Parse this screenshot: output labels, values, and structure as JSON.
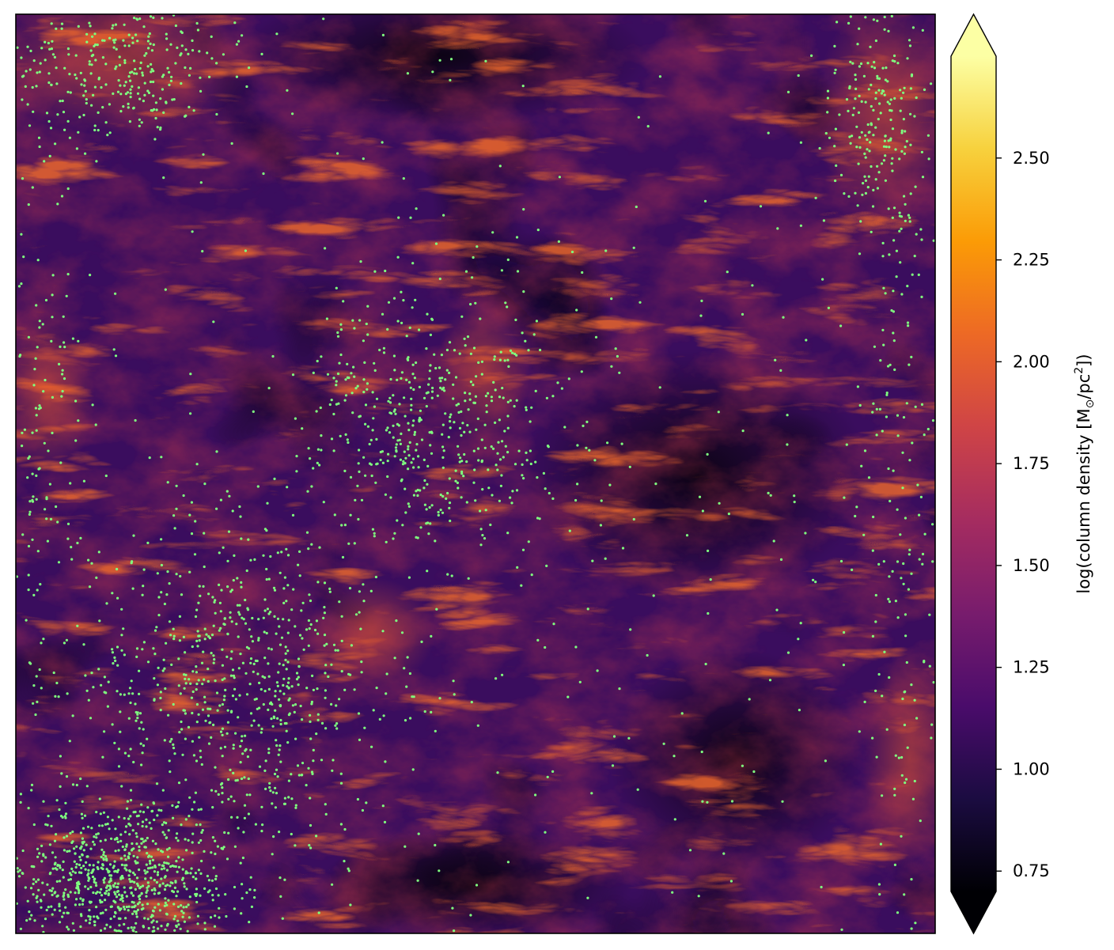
{
  "chart_data": {
    "type": "heatmap",
    "title": "",
    "xlabel": "",
    "ylabel": "",
    "colormap": "inferno",
    "overlay": {
      "type": "scatter",
      "marker_color": "#7fff7f",
      "clusters": [
        {
          "region": "bottom-left",
          "count": 900
        },
        {
          "region": "lower-left-center",
          "count": 700
        },
        {
          "region": "center",
          "count": 450
        },
        {
          "region": "top-left",
          "count": 300
        },
        {
          "region": "top-right",
          "count": 220
        },
        {
          "region": "right-edge",
          "count": 180
        },
        {
          "region": "left-edge",
          "count": 160
        },
        {
          "region": "scattered",
          "count": 400
        }
      ]
    },
    "colorbar": {
      "label_prefix": "log(column density [M",
      "label_sun": "⊙",
      "label_unit": "/pc",
      "label_sup": "2",
      "label_suffix": "])",
      "range": [
        0.7,
        2.75
      ],
      "extend": "both",
      "ticks": [
        {
          "value": 0.75,
          "label": "0.75"
        },
        {
          "value": 1.0,
          "label": "1.00"
        },
        {
          "value": 1.25,
          "label": "1.25"
        },
        {
          "value": 1.5,
          "label": "1.50"
        },
        {
          "value": 1.75,
          "label": "1.75"
        },
        {
          "value": 2.0,
          "label": "2.00"
        },
        {
          "value": 2.25,
          "label": "2.25"
        },
        {
          "value": 2.5,
          "label": "2.50"
        }
      ],
      "colors": [
        "#000004",
        "#1b0c41",
        "#4a0c6b",
        "#781c6d",
        "#a52c60",
        "#cf4446",
        "#ed6925",
        "#fb9b06",
        "#f7d13d",
        "#fcffa4"
      ]
    }
  }
}
